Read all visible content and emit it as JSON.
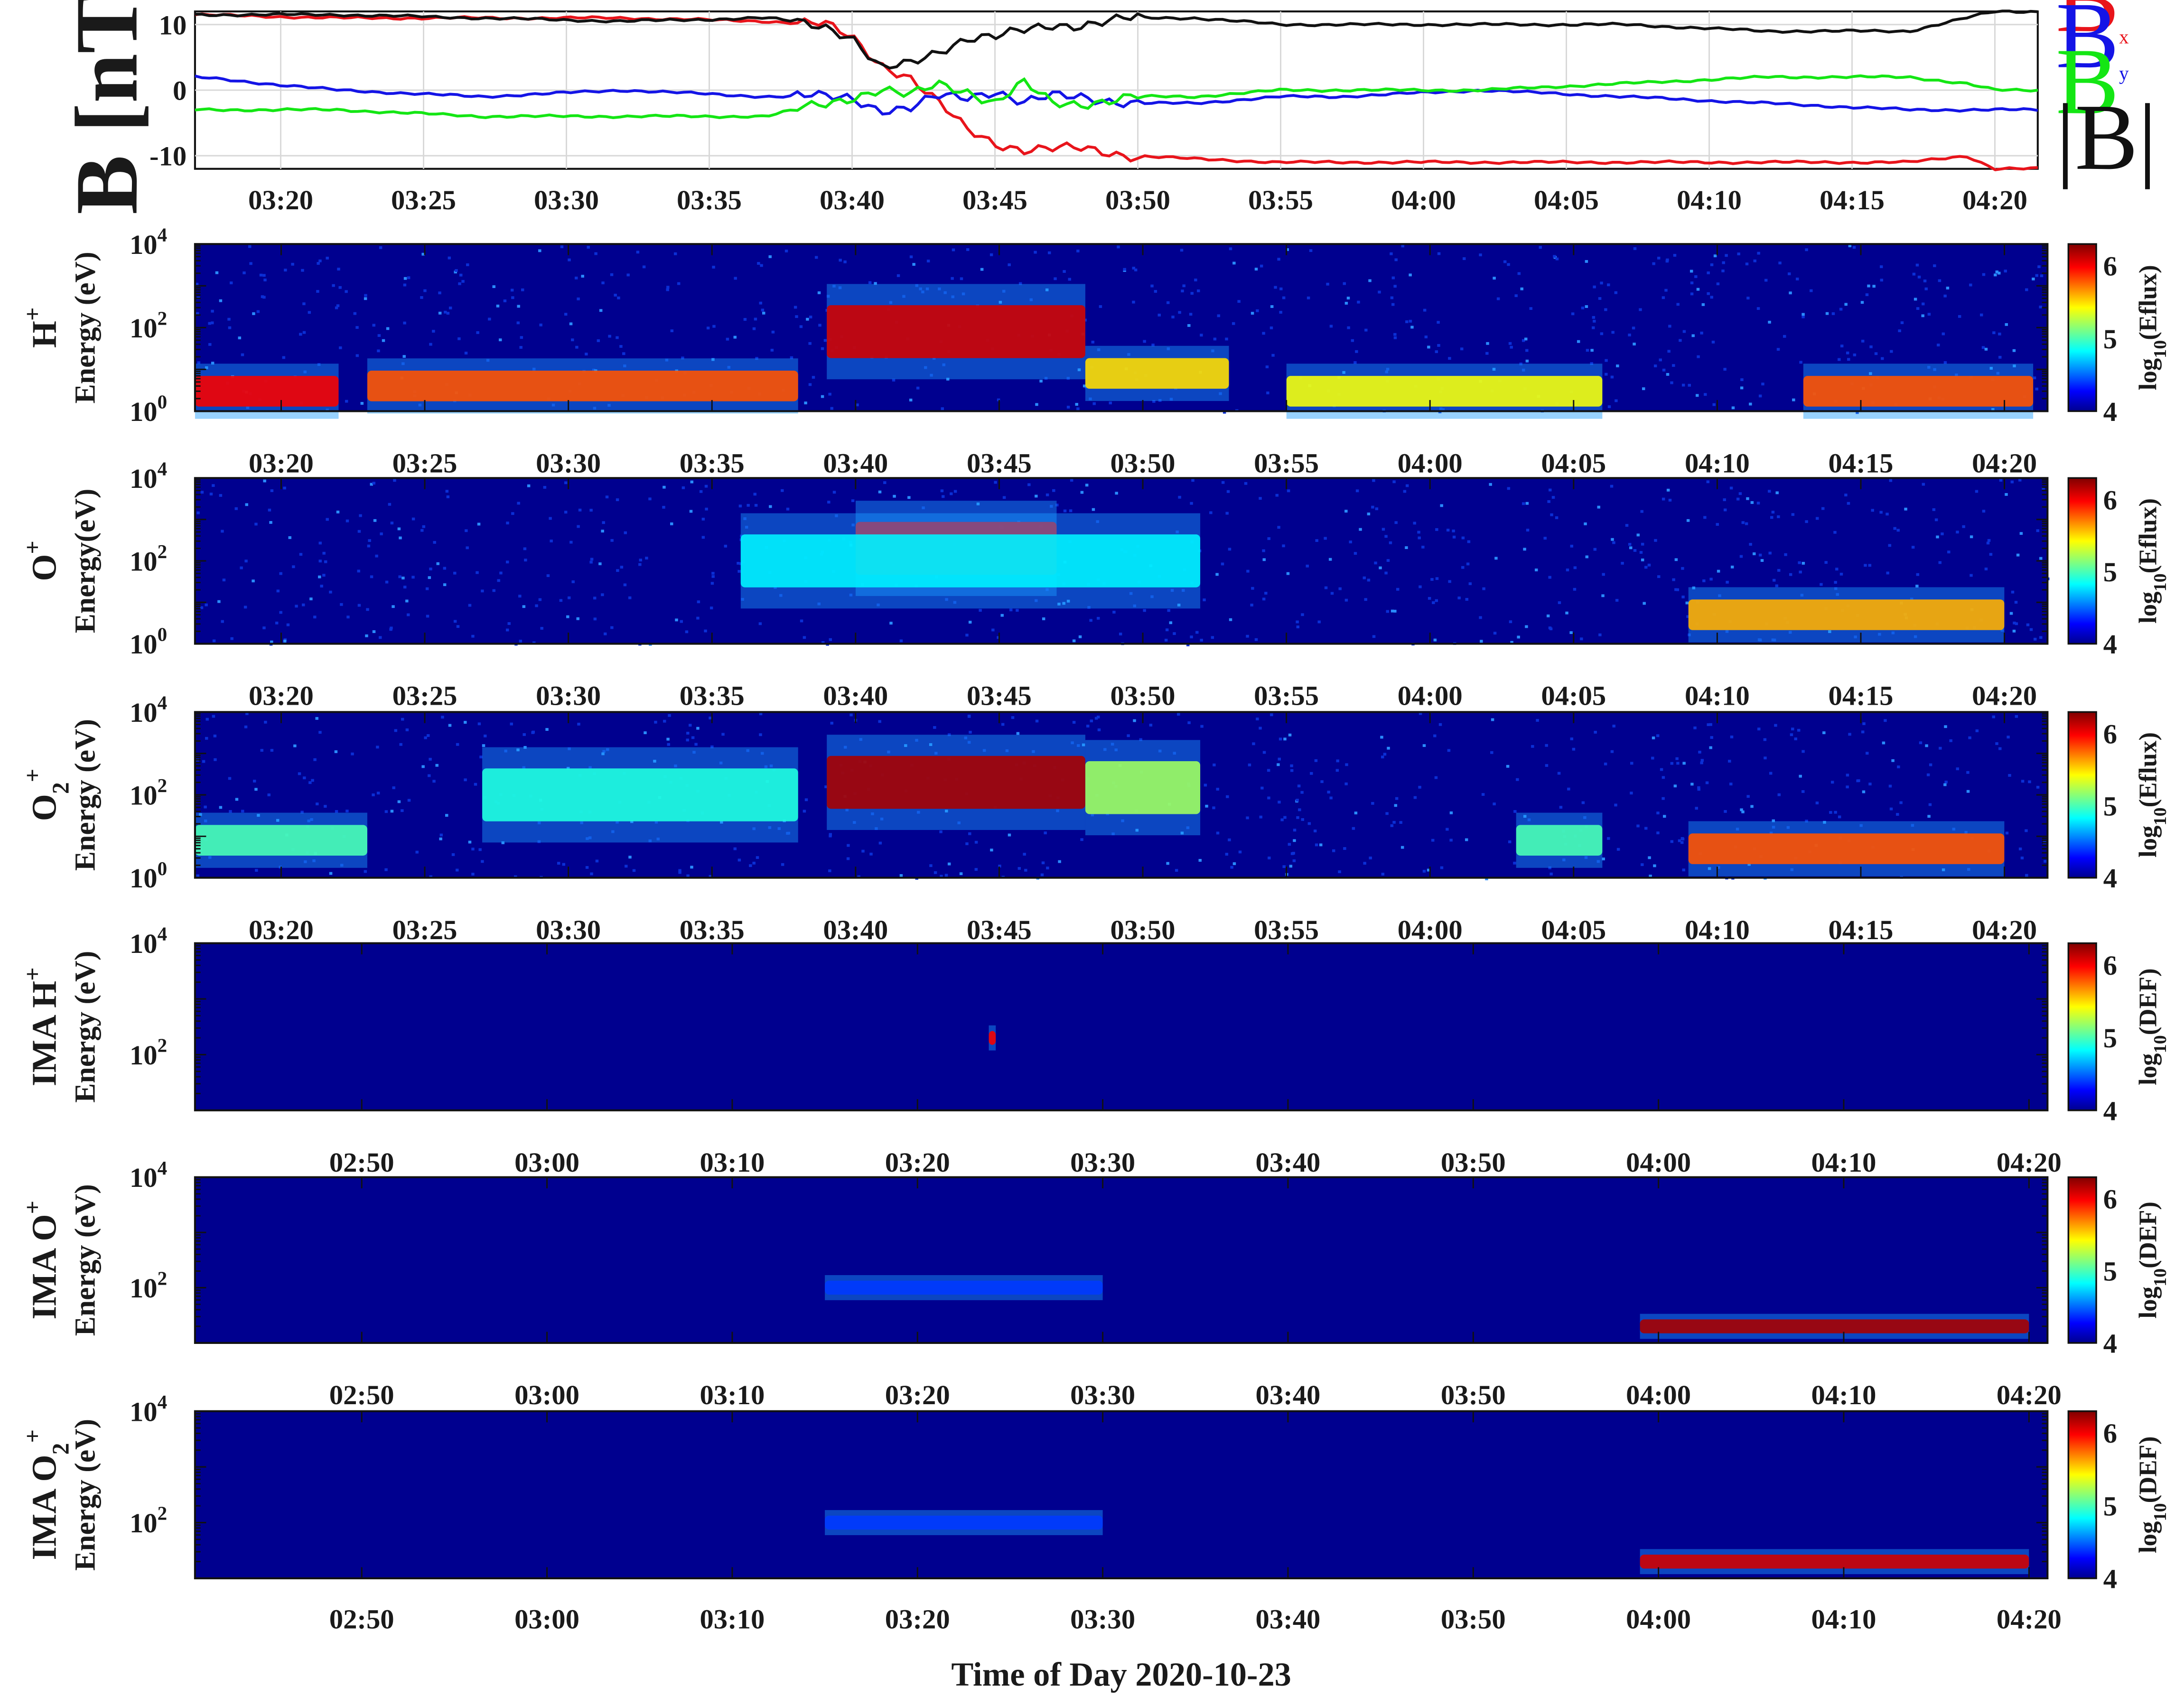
{
  "figure": {
    "xlabel": "Time of Day 2020-10-23"
  },
  "magnetometer": {
    "ylabel": "B [nT]",
    "yticks": [
      "10",
      "0",
      "-10"
    ],
    "xticks": [
      "03:20",
      "03:25",
      "03:30",
      "03:35",
      "03:40",
      "03:45",
      "03:50",
      "03:55",
      "04:00",
      "04:05",
      "04:10",
      "04:15",
      "04:20"
    ],
    "legend": [
      {
        "main": "B",
        "sub": "x",
        "color": "#e8141b",
        "kind": "sub"
      },
      {
        "main": "B",
        "sub": "y",
        "color": "#1414e6",
        "kind": "sub"
      },
      {
        "main": "B",
        "sub": "z",
        "color": "#14e614",
        "kind": "sub"
      },
      {
        "main": "|B|",
        "sub": "",
        "color": "#111111",
        "kind": "plain"
      }
    ]
  },
  "spectrograms": [
    {
      "species": {
        "main": "H",
        "sup": "+",
        "sub": ""
      },
      "ylabel": "Energy (eV)",
      "cbar": {
        "base": "log",
        "sub": "10",
        "rest": "(Eflux)"
      },
      "xticks": [
        "03:20",
        "03:25",
        "03:30",
        "03:35",
        "03:40",
        "03:45",
        "03:50",
        "03:55",
        "04:00",
        "04:05",
        "04:10",
        "04:15",
        "04:20"
      ]
    },
    {
      "species": {
        "main": "O",
        "sup": "+",
        "sub": ""
      },
      "ylabel": "Energy(eV)",
      "cbar": {
        "base": "log",
        "sub": "10",
        "rest": "(Eflux)"
      },
      "xticks": [
        "03:20",
        "03:25",
        "03:30",
        "03:35",
        "03:40",
        "03:45",
        "03:50",
        "03:55",
        "04:00",
        "04:05",
        "04:10",
        "04:15",
        "04:20"
      ]
    },
    {
      "species": {
        "main": "O",
        "sup": "+",
        "sub": "2"
      },
      "ylabel": "Energy (eV)",
      "cbar": {
        "base": "log",
        "sub": "10",
        "rest": "(Eflux)"
      },
      "xticks": [
        "03:20",
        "03:25",
        "03:30",
        "03:35",
        "03:40",
        "03:45",
        "03:50",
        "03:55",
        "04:00",
        "04:05",
        "04:10",
        "04:15",
        "04:20"
      ]
    },
    {
      "species": {
        "pre": "IMA ",
        "main": "H",
        "sup": "+",
        "sub": ""
      },
      "ylabel": "Energy (eV)",
      "cbar": {
        "base": "log",
        "sub": "10",
        "rest": "(DEF)"
      },
      "xticks": [
        "02:50",
        "03:00",
        "03:10",
        "03:20",
        "03:30",
        "03:40",
        "03:50",
        "04:00",
        "04:10",
        "04:20"
      ]
    },
    {
      "species": {
        "pre": "IMA ",
        "main": "O",
        "sup": "+",
        "sub": ""
      },
      "ylabel": "Energy (eV)",
      "cbar": {
        "base": "log",
        "sub": "10",
        "rest": "(DEF)"
      },
      "xticks": [
        "02:50",
        "03:00",
        "03:10",
        "03:20",
        "03:30",
        "03:40",
        "03:50",
        "04:00",
        "04:10",
        "04:20"
      ]
    },
    {
      "species": {
        "pre": "IMA ",
        "main": "O",
        "sup": "+",
        "sub": "2"
      },
      "ylabel": "Energy (eV)",
      "cbar": {
        "base": "log",
        "sub": "10",
        "rest": "(DEF)"
      },
      "xticks": [
        "02:50",
        "03:00",
        "03:10",
        "03:20",
        "03:30",
        "03:40",
        "03:50",
        "04:00",
        "04:10",
        "04:20"
      ]
    }
  ],
  "energy_ticks": {
    "base": "10",
    "exps_full": [
      "4",
      "2",
      "0"
    ],
    "exps_ima": [
      "4",
      "2"
    ]
  },
  "colorbar_ticks": [
    "6",
    "5",
    "4"
  ],
  "chart_data": [
    {
      "type": "line",
      "title": "",
      "ylabel": "B [nT]",
      "ylim": [
        -12,
        12
      ],
      "x_unit": "minutes since 03:17",
      "x": [
        0,
        5,
        10,
        15,
        20,
        22,
        23,
        24,
        25,
        26,
        27,
        28,
        29,
        30,
        31,
        33,
        35,
        38,
        40,
        45,
        50,
        55,
        60,
        62,
        63,
        64
      ],
      "series": [
        {
          "name": "Bx",
          "color": "#e8141b",
          "values": [
            11.5,
            11,
            11,
            11,
            10.5,
            10,
            8,
            4,
            2,
            -2,
            -6,
            -8,
            -9,
            -9,
            -9,
            -10,
            -10.5,
            -11,
            -11,
            -11,
            -11,
            -11,
            -11,
            -10,
            -12,
            -12
          ]
        },
        {
          "name": "By",
          "color": "#1414e6",
          "values": [
            2,
            0,
            -1,
            0,
            -1,
            -1,
            -1,
            -3,
            -3,
            -1,
            -1,
            0,
            -2,
            -1,
            -1,
            -2,
            -2,
            -1,
            -1,
            0,
            -1,
            -2,
            -3,
            -3,
            -3,
            -3
          ]
        },
        {
          "name": "Bz",
          "color": "#14e614",
          "values": [
            -3,
            -3,
            -4,
            -4,
            -4,
            -2,
            -1,
            0,
            -1,
            1,
            0,
            -2,
            1,
            -2,
            -2,
            -1,
            -1,
            0,
            0,
            0,
            1,
            2,
            2,
            1,
            0,
            0
          ]
        },
        {
          "name": "|B|",
          "color": "#111111",
          "values": [
            11.5,
            11.5,
            11,
            10.5,
            11,
            10,
            8,
            3,
            4,
            6,
            8,
            8,
            9,
            10,
            10,
            11,
            11,
            10,
            10,
            10,
            10,
            9,
            9,
            11,
            12,
            12
          ]
        }
      ]
    },
    {
      "type": "heatmap",
      "ylabel": "Energy (eV)",
      "yscale": "log",
      "ylim": [
        1,
        10000
      ],
      "colorbar_label": "log10(Eflux)",
      "clim": [
        4,
        6.3
      ],
      "species": "H+",
      "features": [
        {
          "t": "03:17-03:22",
          "E_eV": 3,
          "level": 6
        },
        {
          "t": "03:23-03:38",
          "E_eV": 4,
          "level": 5.8
        },
        {
          "t": "03:39-03:48",
          "E_eV": 80,
          "level": 6.1
        },
        {
          "t": "03:48-03:53",
          "E_eV": 8,
          "level": 5.5
        },
        {
          "t": "03:55-04:06",
          "E_eV": 3,
          "level": 5.4
        },
        {
          "t": "04:13-04:21",
          "E_eV": 3,
          "level": 5.8
        }
      ]
    },
    {
      "type": "heatmap",
      "ylabel": "Energy(eV)",
      "yscale": "log",
      "ylim": [
        1,
        10000
      ],
      "colorbar_label": "log10(Eflux)",
      "clim": [
        4,
        6.3
      ],
      "species": "O+",
      "features": [
        {
          "t": "03:40-03:47",
          "E_eV": 200,
          "level": 6
        },
        {
          "t": "03:36-03:52",
          "E_eV": 100,
          "level": 4.8
        },
        {
          "t": "04:09-04:20",
          "E_eV": 5,
          "level": 5.6
        }
      ]
    },
    {
      "type": "heatmap",
      "ylabel": "Energy (eV)",
      "yscale": "log",
      "ylim": [
        1,
        10000
      ],
      "colorbar_label": "log10(Eflux)",
      "clim": [
        4,
        6.3
      ],
      "species": "O2+",
      "features": [
        {
          "t": "03:17-03:23",
          "E_eV": 8,
          "level": 5
        },
        {
          "t": "03:27-03:38",
          "E_eV": 100,
          "level": 4.9
        },
        {
          "t": "03:39-03:48",
          "E_eV": 200,
          "level": 6.2
        },
        {
          "t": "03:48-03:52",
          "E_eV": 150,
          "level": 5.2
        },
        {
          "t": "04:03-04:06",
          "E_eV": 8,
          "level": 5
        },
        {
          "t": "04:09-04:20",
          "E_eV": 5,
          "level": 5.8
        }
      ]
    },
    {
      "type": "heatmap",
      "ylabel": "Energy (eV)",
      "yscale": "log",
      "ylim": [
        10,
        10000
      ],
      "colorbar_label": "log10(DEF)",
      "clim": [
        4,
        6.3
      ],
      "species": "IMA H+",
      "features": [
        {
          "t": "03:24",
          "E_eV": 200,
          "level": 6
        }
      ]
    },
    {
      "type": "heatmap",
      "ylabel": "Energy (eV)",
      "yscale": "log",
      "ylim": [
        10,
        10000
      ],
      "colorbar_label": "log10(DEF)",
      "clim": [
        4,
        6.3
      ],
      "species": "IMA O+",
      "features": [
        {
          "t": "03:15-03:30",
          "E_eV": 100,
          "level": 4.4
        },
        {
          "t": "03:59-04:20",
          "E_eV": 20,
          "level": 6.2
        }
      ]
    },
    {
      "type": "heatmap",
      "ylabel": "Energy (eV)",
      "yscale": "log",
      "ylim": [
        10,
        10000
      ],
      "colorbar_label": "log10(DEF)",
      "clim": [
        4,
        6.3
      ],
      "species": "IMA O2+",
      "features": [
        {
          "t": "03:15-03:30",
          "E_eV": 100,
          "level": 4.4
        },
        {
          "t": "03:59-04:20",
          "E_eV": 20,
          "level": 6.1
        }
      ]
    }
  ]
}
